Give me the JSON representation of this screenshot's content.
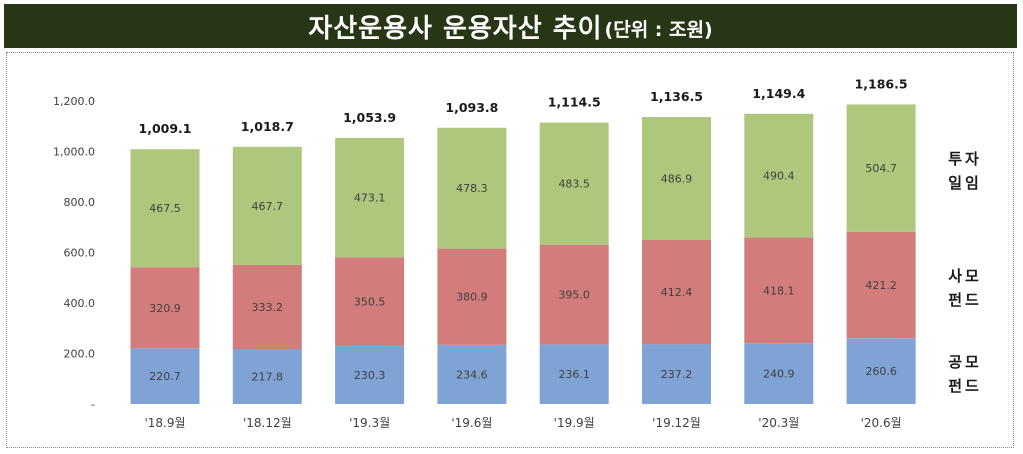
{
  "title": {
    "main": "자산운용사 운용자산 추이",
    "unit": "(단위 : 조원)"
  },
  "colors": {
    "title_bg": "#273716",
    "gongmo": "#7fa3d4",
    "samo": "#d27c7b",
    "tuja": "#aec77d"
  },
  "chart_data": {
    "type": "bar",
    "stacked": true,
    "categories": [
      "'18.9월",
      "'18.12월",
      "'19.3월",
      "'19.6월",
      "'19.9월",
      "'19.12월",
      "'20.3월",
      "'20.6월"
    ],
    "series": [
      {
        "name": "공모 펀드",
        "label_lines": [
          "공모",
          "펀드"
        ],
        "color": "#7fa3d4",
        "values": [
          220.7,
          217.8,
          230.3,
          234.6,
          236.1,
          237.2,
          240.9,
          260.6
        ]
      },
      {
        "name": "사모 펀드",
        "label_lines": [
          "사모",
          "펀드"
        ],
        "color": "#d27c7b",
        "values": [
          320.9,
          333.2,
          350.5,
          380.9,
          395.0,
          412.4,
          418.1,
          421.2
        ]
      },
      {
        "name": "투자 일임",
        "label_lines": [
          "투자",
          "일임"
        ],
        "color": "#aec77d",
        "values": [
          467.5,
          467.7,
          473.1,
          478.3,
          483.5,
          486.9,
          490.4,
          504.7
        ]
      }
    ],
    "totals": [
      1009.1,
      1018.7,
      1053.9,
      1093.8,
      1114.5,
      1136.5,
      1149.4,
      1186.5
    ],
    "ylim": [
      0,
      1200
    ],
    "yticks": [
      0,
      200,
      400,
      600,
      800,
      1000,
      1200
    ],
    "ytick_labels": [
      "-",
      "200.0",
      "400.0",
      "600.0",
      "800.0",
      "1,000.0",
      "1,200.0"
    ],
    "grid": false,
    "legend_position": "right, beside each stack segment"
  }
}
